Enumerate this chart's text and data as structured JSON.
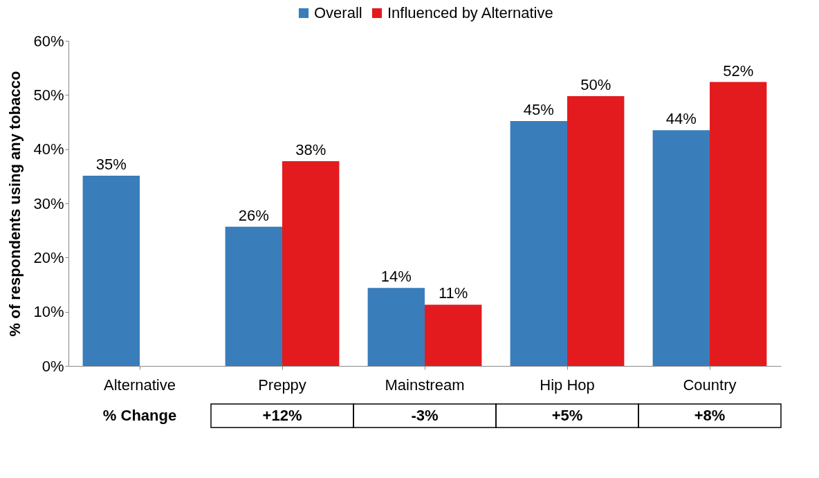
{
  "chart_data": {
    "type": "bar",
    "ylabel": "% of respondents using any tobacco",
    "categories": [
      "Alternative",
      "Preppy",
      "Mainstream",
      "Hip Hop",
      "Country"
    ],
    "series": [
      {
        "name": "Overall",
        "color": "#3a7dbb",
        "values": [
          35.1,
          25.7,
          14.4,
          45.2,
          43.5
        ],
        "value_labels": [
          "35%",
          "26%",
          "14%",
          "45%",
          "44%"
        ]
      },
      {
        "name": "Influenced by Alternative",
        "color": "#e31b1f",
        "values": [
          null,
          37.8,
          11.3,
          49.8,
          52.4
        ],
        "value_labels": [
          null,
          "38%",
          "11%",
          "50%",
          "52%"
        ]
      }
    ],
    "ylim": [
      0,
      60
    ],
    "yticks": [
      {
        "value": 0,
        "label": "0%"
      },
      {
        "value": 10,
        "label": "10%"
      },
      {
        "value": 20,
        "label": "20%"
      },
      {
        "value": 30,
        "label": "30%"
      },
      {
        "value": 40,
        "label": "40%"
      },
      {
        "value": 50,
        "label": "50%"
      },
      {
        "value": 60,
        "label": "60%"
      }
    ],
    "grid": false,
    "legend": "top",
    "annotations": [
      "% Change",
      "+12%",
      "-3%",
      "+5%",
      "+8%"
    ]
  }
}
